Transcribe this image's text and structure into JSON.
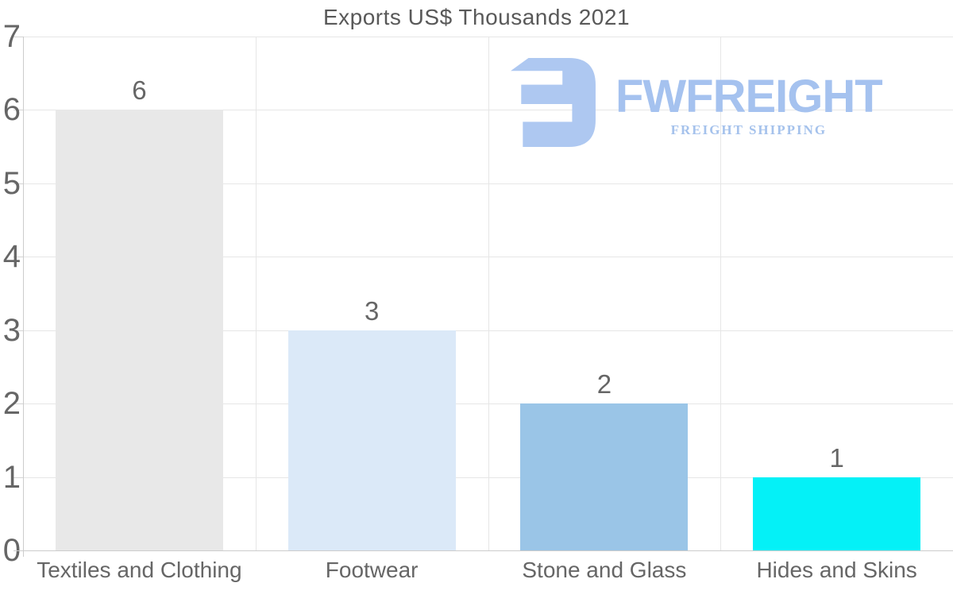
{
  "header": {
    "title": "Exports US$ Thousands 2021"
  },
  "logo": {
    "brand": "FWFREIGHT",
    "tagline": "FREIGHT SHIPPING",
    "brand_color": "#a5c2ef",
    "tagline_color": "#a5c2ec",
    "icon_color": "#aec8f1"
  },
  "chart_data": {
    "type": "bar",
    "title": "Exports US$ Thousands 2021",
    "categories": [
      "Textiles and Clothing",
      "Footwear",
      "Stone and Glass",
      "Hides and Skins"
    ],
    "values": [
      6,
      3,
      2,
      1
    ],
    "value_labels": [
      "6",
      "3",
      "2",
      "1"
    ],
    "bar_colors": [
      "#e8e8e8",
      "#dbe9f8",
      "#9ac5e7",
      "#04f1f7"
    ],
    "ylim": [
      0,
      7
    ],
    "y_ticks": [
      0,
      1,
      2,
      3,
      4,
      5,
      6,
      7
    ],
    "grid": true,
    "legend": false,
    "xlabel": "",
    "ylabel": "",
    "text_color": "#666666",
    "grid_color": "#e6e6e6",
    "axis_color": "#cccccc"
  }
}
